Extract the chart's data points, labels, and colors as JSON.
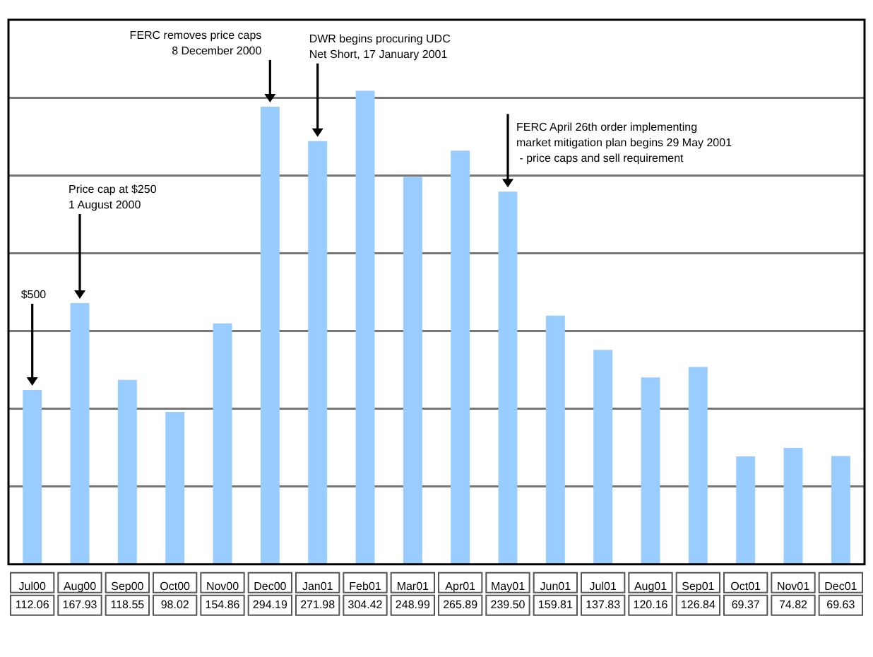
{
  "chart_data": {
    "type": "bar",
    "categories": [
      "Jul00",
      "Aug00",
      "Sep00",
      "Oct00",
      "Nov00",
      "Dec00",
      "Jan01",
      "Feb01",
      "Mar01",
      "Apr01",
      "May01",
      "Jun01",
      "Jul01",
      "Aug01",
      "Sep01",
      "Oct01",
      "Nov01",
      "Dec01"
    ],
    "values": [
      112.06,
      167.93,
      118.55,
      98.02,
      154.86,
      294.19,
      271.98,
      304.42,
      248.99,
      265.89,
      239.5,
      159.81,
      137.83,
      120.16,
      126.84,
      69.37,
      74.82,
      69.63
    ],
    "value_labels": [
      "112.06",
      "167.93",
      "118.55",
      "98.02",
      "154.86",
      "294.19",
      "271.98",
      "304.42",
      "248.99",
      "265.89",
      "239.50",
      "159.81",
      "137.83",
      "120.16",
      "126.84",
      "69.37",
      "74.82",
      "69.63"
    ],
    "color": "#99ccff",
    "ylim": [
      0,
      350
    ],
    "yticks": [
      {
        "value": 50,
        "label": null
      },
      {
        "value": 100,
        "label": null
      },
      {
        "value": 150,
        "label": null
      },
      {
        "value": 200,
        "label": null
      },
      {
        "value": 250,
        "label": null
      },
      {
        "value": 300,
        "label": null
      }
    ],
    "tick_labels": "x",
    "grid": "y",
    "legend": false,
    "annotations": [
      {
        "text": "$500",
        "x": "Jul00",
        "y": 112.06
      },
      {
        "text": "Price cap at $250\n1 August 2000",
        "x": "Aug00",
        "y": 167.93
      },
      {
        "text": "FERC removes price caps\n8 December 2000",
        "x": "Dec00",
        "y": 294.19
      },
      {
        "text": "DWR begins procuring UDC\nNet Short, 17 January 2001",
        "x": "Jan01",
        "y": 271.98
      },
      {
        "text": "FERC April 26th order implementing\nmarket mitigation plan begins 29 May 2001\n - price caps and sell requirement",
        "x": "May01",
        "y": 239.5
      }
    ]
  }
}
